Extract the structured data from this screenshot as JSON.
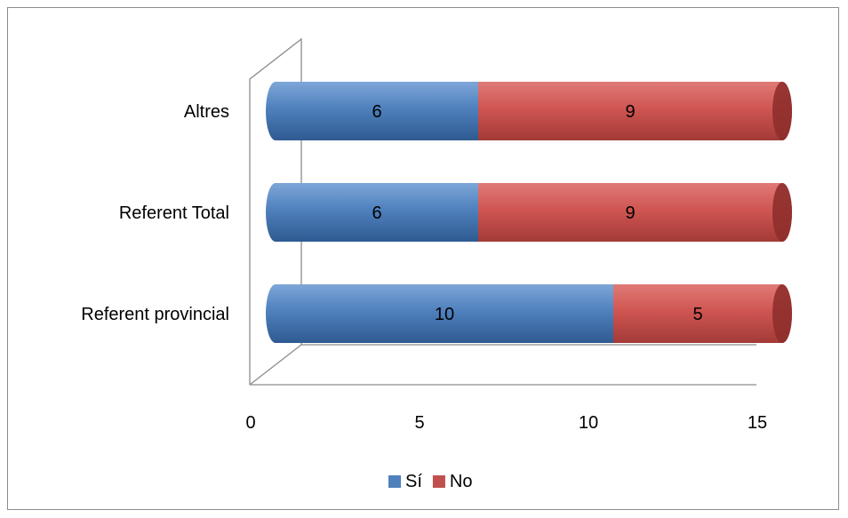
{
  "chart_data": {
    "type": "bar",
    "orientation": "horizontal",
    "stacked": true,
    "three_d": true,
    "title": "",
    "xlabel": "",
    "ylabel": "",
    "categories": [
      "Referent provincial",
      "Referent Total",
      "Altres"
    ],
    "series": [
      {
        "name": "Sí",
        "values": [
          10,
          6,
          6
        ],
        "color": "#4F81BD"
      },
      {
        "name": "No",
        "values": [
          5,
          9,
          9
        ],
        "color": "#C0504D"
      }
    ],
    "xlim": [
      0,
      15
    ],
    "xticks": [
      0,
      5,
      10,
      15
    ],
    "grid": false,
    "legend": "bottom"
  }
}
